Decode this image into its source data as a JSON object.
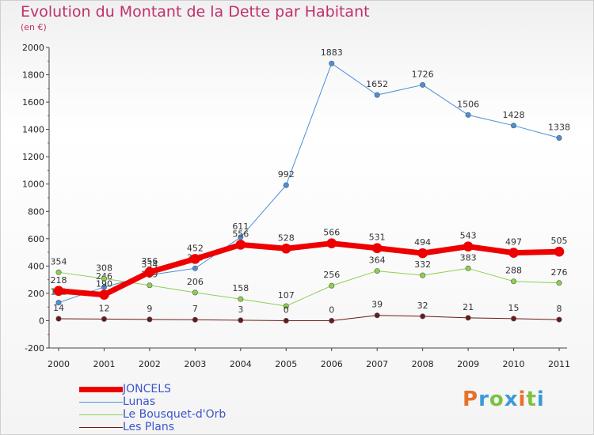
{
  "title": "Evolution du Montant de la Dette par Habitant",
  "subtitle": "(en €)",
  "logo": {
    "text": "Proxiti",
    "colors": [
      "#e8712c",
      "#3a9ad9",
      "#7cc242",
      "#3a9ad9",
      "#e8712c",
      "#7cc242",
      "#3a9ad9"
    ]
  },
  "chart_data": {
    "type": "line",
    "x": [
      "2000",
      "2001",
      "2002",
      "2003",
      "2004",
      "2005",
      "2006",
      "2007",
      "2008",
      "2009",
      "2010",
      "2011"
    ],
    "ylim": [
      -200,
      2000
    ],
    "yticks": [
      "-200",
      "0",
      "200",
      "400",
      "600",
      "800",
      "1000",
      "1200",
      "1400",
      "1600",
      "1800",
      "2000"
    ],
    "grid": false,
    "legend_position": "bottom-left",
    "series": [
      {
        "name": "Lunas",
        "color": "#4a90d9",
        "width": 1,
        "values": [
          132,
          246,
          334,
          383,
          611,
          992,
          1883,
          1652,
          1726,
          1506,
          1428,
          1338
        ],
        "labels": [
          "132",
          "246",
          "334",
          "383",
          "611",
          "992",
          "1883",
          "1652",
          "1726",
          "1506",
          "1428",
          "1338"
        ]
      },
      {
        "name": "Le Bousquet-d'Orb",
        "color": "#8dd04f",
        "width": 1,
        "values": [
          354,
          308,
          259,
          206,
          158,
          107,
          256,
          364,
          332,
          383,
          288,
          276
        ],
        "labels": [
          "354",
          "308",
          "259",
          "206",
          "158",
          "107",
          "256",
          "364",
          "332",
          "383",
          "288",
          "276"
        ]
      },
      {
        "name": "Les Plans",
        "color": "#6b1a1a",
        "width": 1,
        "values": [
          14,
          12,
          9,
          7,
          3,
          0,
          0,
          39,
          32,
          21,
          15,
          8
        ],
        "labels": [
          "14",
          "12",
          "9",
          "7",
          "3",
          "0",
          "0",
          "39",
          "32",
          "21",
          "15",
          "8"
        ]
      },
      {
        "name": "JONCELS",
        "color": "#ee0000",
        "width": 7,
        "values": [
          218,
          190,
          356,
          452,
          556,
          528,
          566,
          531,
          494,
          543,
          497,
          505
        ],
        "labels": [
          "218",
          "190",
          "356",
          "452",
          "556",
          "528",
          "566",
          "531",
          "494",
          "543",
          "497",
          "505"
        ]
      }
    ]
  },
  "legend": [
    {
      "label": "JONCELS",
      "color": "#ee0000",
      "thickness": 7
    },
    {
      "label": "Lunas",
      "color": "#4a90d9",
      "thickness": 1
    },
    {
      "label": "Le Bousquet-d'Orb",
      "color": "#8dd04f",
      "thickness": 1
    },
    {
      "label": "Les Plans",
      "color": "#6b1a1a",
      "thickness": 1
    }
  ]
}
